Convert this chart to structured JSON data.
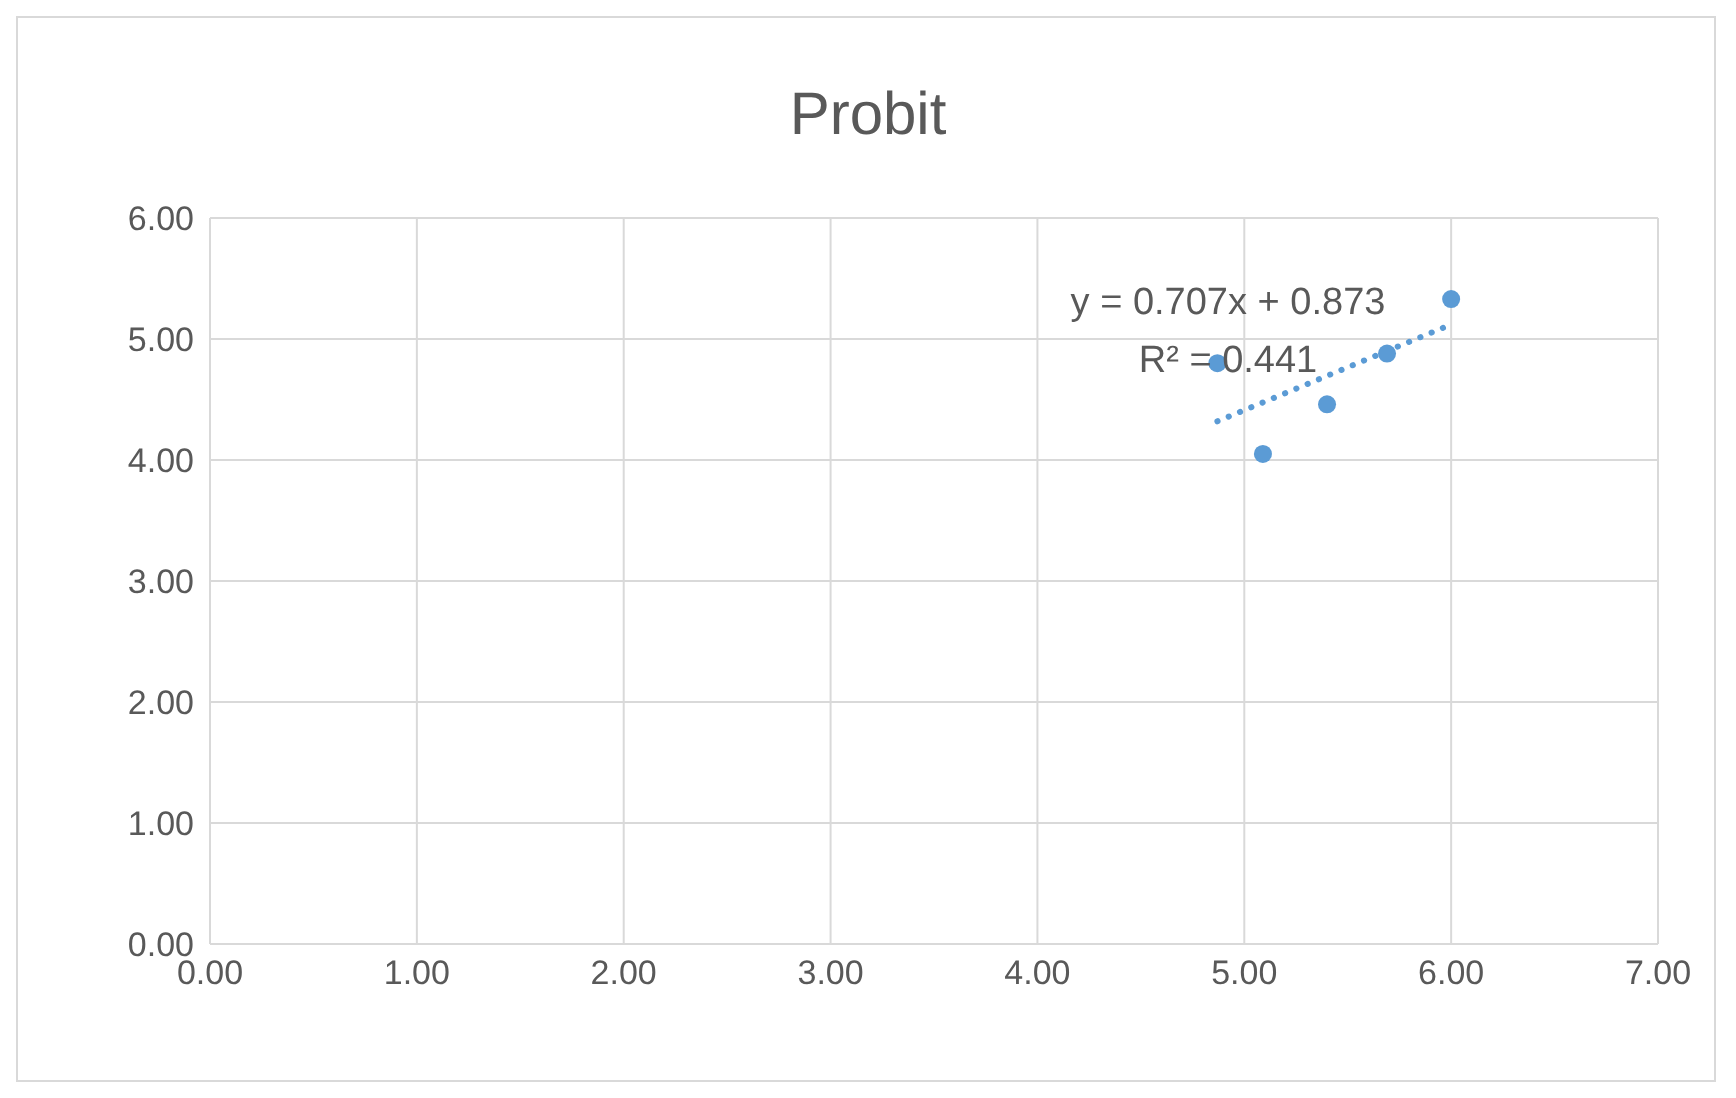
{
  "chart_data": {
    "type": "scatter",
    "title": "Probit",
    "x": [
      4.87,
      5.09,
      5.4,
      5.69,
      6.0
    ],
    "series": [
      {
        "color": "#5b9bd5",
        "values": [
          4.8,
          4.05,
          4.46,
          4.88,
          5.33
        ],
        "marker": "circle"
      },
      {
        "type": "line",
        "color": "#5b9bd5",
        "x": [
          4.87,
          6.0
        ],
        "values": [
          4.32,
          5.12
        ],
        "line_style": "dotted",
        "marker": "none"
      }
    ],
    "xlim": [
      0,
      7
    ],
    "xticks": [
      {
        "value": 0,
        "label": "0.00"
      },
      {
        "value": 1,
        "label": "1.00"
      },
      {
        "value": 2,
        "label": "2.00"
      },
      {
        "value": 3,
        "label": "3.00"
      },
      {
        "value": 4,
        "label": "4.00"
      },
      {
        "value": 5,
        "label": "5.00"
      },
      {
        "value": 6,
        "label": "6.00"
      },
      {
        "value": 7,
        "label": "7.00"
      }
    ],
    "ylim": [
      0,
      6
    ],
    "yticks": [
      {
        "value": 0,
        "label": "0.00"
      },
      {
        "value": 1,
        "label": "1.00"
      },
      {
        "value": 2,
        "label": "2.00"
      },
      {
        "value": 3,
        "label": "3.00"
      },
      {
        "value": 4,
        "label": "4.00"
      },
      {
        "value": 5,
        "label": "5.00"
      },
      {
        "value": 6,
        "label": "6.00"
      }
    ],
    "annotations": [
      "y = 0.707x + 0.873",
      "R² = 0.441"
    ],
    "grid": true,
    "legend": false
  }
}
